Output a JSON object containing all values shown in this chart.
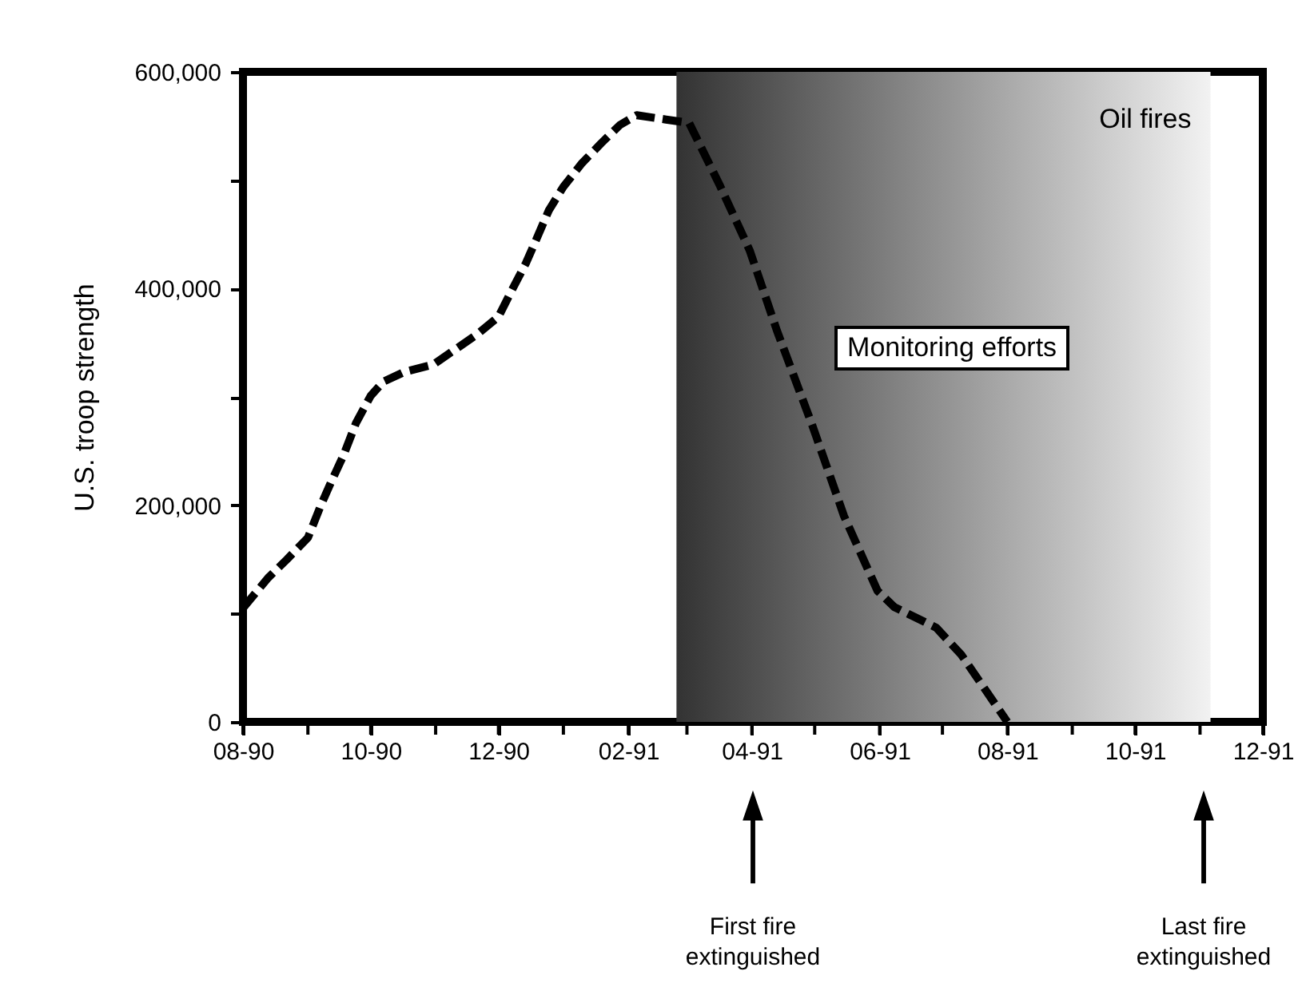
{
  "chart_data": {
    "type": "line",
    "ylabel": "U.S. troop strength",
    "x": [
      "1990-08-01",
      "1990-08-13",
      "1990-08-22",
      "1990-09-01",
      "1990-09-07",
      "1990-09-12",
      "1990-09-18",
      "1990-09-24",
      "1990-10-01",
      "1990-10-07",
      "1990-10-17",
      "1990-10-31",
      "1990-11-09",
      "1990-11-21",
      "1990-12-01",
      "1990-12-07",
      "1990-12-14",
      "1990-12-19",
      "1990-12-25",
      "1991-01-01",
      "1991-01-10",
      "1991-01-19",
      "1991-01-28",
      "1991-02-05",
      "1991-02-19",
      "1991-03-02",
      "1991-03-17",
      "1991-03-31",
      "1991-04-13",
      "1991-04-30",
      "1991-05-15",
      "1991-05-31",
      "1991-06-08",
      "1991-06-28",
      "1991-07-10",
      "1991-08-01"
    ],
    "values": [
      105000,
      133000,
      150000,
      170000,
      199000,
      221000,
      246000,
      276000,
      301000,
      314000,
      323000,
      330000,
      342000,
      358000,
      374000,
      397000,
      423000,
      445000,
      472000,
      494000,
      516000,
      534000,
      551000,
      560000,
      556000,
      553000,
      494000,
      435000,
      361000,
      273000,
      190000,
      121000,
      106000,
      87000,
      62000,
      0
    ],
    "color": "#000000",
    "line_style": "dashed",
    "xlim": [
      "1990-08-01",
      "1991-12-01"
    ],
    "xticks": [
      {
        "value": "1990-08",
        "label": "08-90"
      },
      {
        "value": "1990-09",
        "label": null
      },
      {
        "value": "1990-10",
        "label": "10-90"
      },
      {
        "value": "1990-11",
        "label": null
      },
      {
        "value": "1990-12",
        "label": "12-90"
      },
      {
        "value": "1991-01",
        "label": null
      },
      {
        "value": "1991-02",
        "label": "02-91"
      },
      {
        "value": "1991-03",
        "label": null
      },
      {
        "value": "1991-04",
        "label": "04-91"
      },
      {
        "value": "1991-05",
        "label": null
      },
      {
        "value": "1991-06",
        "label": "06-91"
      },
      {
        "value": "1991-07",
        "label": null
      },
      {
        "value": "1991-08",
        "label": "08-91"
      },
      {
        "value": "1991-09",
        "label": null
      },
      {
        "value": "1991-10",
        "label": "10-91"
      },
      {
        "value": "1991-11",
        "label": null
      },
      {
        "value": "1991-12",
        "label": "12-91"
      }
    ],
    "ylim": [
      0,
      600000
    ],
    "yticks": [
      {
        "value": 0,
        "label": "0"
      },
      {
        "value": 100000,
        "label": null
      },
      {
        "value": 200000,
        "label": "200,000"
      },
      {
        "value": 300000,
        "label": null
      },
      {
        "value": 400000,
        "label": "400,000"
      },
      {
        "value": 500000,
        "label": null
      },
      {
        "value": 600000,
        "label": "600,000"
      }
    ],
    "bands": [
      {
        "axis": "x",
        "from": "1991-02-24",
        "to": "1991-11-06",
        "label": "Oil fires",
        "color": "#333333"
      }
    ],
    "annotations": [
      "Monitoring efforts",
      "First fire extinguished",
      "Last fire extinguished"
    ]
  }
}
